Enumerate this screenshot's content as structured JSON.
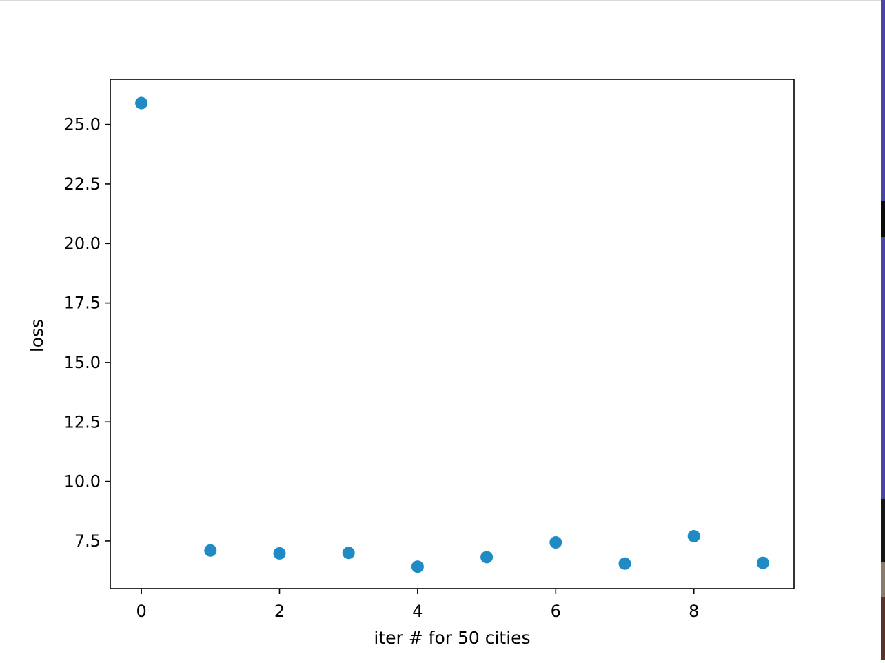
{
  "chart_data": {
    "type": "scatter",
    "title": "",
    "xlabel": "iter # for 50 cities",
    "ylabel": "loss",
    "x": [
      0,
      1,
      2,
      3,
      4,
      5,
      6,
      7,
      8,
      9
    ],
    "series": [
      {
        "values": [
          25.9,
          7.1,
          6.98,
          7.0,
          6.42,
          6.82,
          7.44,
          6.55,
          7.7,
          6.58
        ]
      }
    ],
    "xlim": [
      -0.45,
      9.45
    ],
    "ylim": [
      5.5,
      26.9
    ],
    "xticks": [
      0,
      2,
      4,
      6,
      8
    ],
    "xtick_labels": [
      "0",
      "2",
      "4",
      "6",
      "8"
    ],
    "yticks": [
      7.5,
      10.0,
      12.5,
      15.0,
      17.5,
      20.0,
      22.5,
      25.0
    ],
    "ytick_labels": [
      "7.5",
      "10.0",
      "12.5",
      "15.0",
      "17.5",
      "20.0",
      "22.5",
      "25.0"
    ],
    "grid": false,
    "marker_color": "#1f8bc4"
  }
}
